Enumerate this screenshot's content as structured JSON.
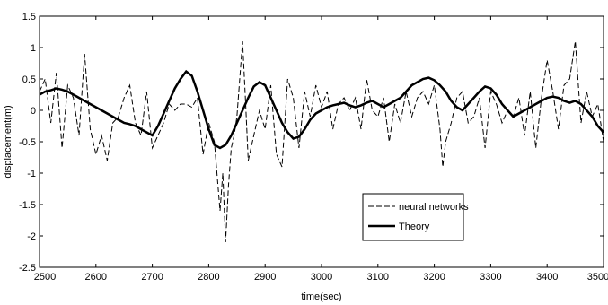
{
  "chart_data": {
    "type": "line",
    "title": "",
    "xlabel": "time(sec)",
    "ylabel": "displacement(m)",
    "xlim": [
      2500,
      3500
    ],
    "ylim": [
      -2.5,
      1.5
    ],
    "xticks": [
      2500,
      2600,
      2700,
      2800,
      2900,
      3000,
      3100,
      3200,
      3300,
      3400,
      3500
    ],
    "yticks": [
      1.5,
      1,
      0.5,
      0,
      -0.5,
      -1,
      -1.5,
      -2,
      -2.5
    ],
    "grid": false,
    "legend_position": "lower-right",
    "series": [
      {
        "name": "neural networks",
        "style": "dashed",
        "color": "#000000",
        "x": [
          2500,
          2510,
          2520,
          2530,
          2540,
          2550,
          2560,
          2570,
          2580,
          2590,
          2600,
          2610,
          2620,
          2630,
          2640,
          2650,
          2660,
          2670,
          2680,
          2690,
          2700,
          2710,
          2720,
          2730,
          2740,
          2750,
          2760,
          2770,
          2780,
          2790,
          2800,
          2810,
          2820,
          2825,
          2830,
          2835,
          2840,
          2845,
          2850,
          2860,
          2865,
          2870,
          2880,
          2890,
          2900,
          2910,
          2920,
          2930,
          2940,
          2950,
          2960,
          2970,
          2980,
          2990,
          3000,
          3010,
          3020,
          3030,
          3040,
          3050,
          3060,
          3070,
          3080,
          3090,
          3100,
          3110,
          3120,
          3130,
          3140,
          3150,
          3160,
          3170,
          3180,
          3190,
          3200,
          3210,
          3215,
          3220,
          3230,
          3240,
          3250,
          3260,
          3270,
          3280,
          3290,
          3300,
          3310,
          3320,
          3330,
          3340,
          3350,
          3360,
          3370,
          3380,
          3390,
          3400,
          3410,
          3420,
          3430,
          3440,
          3450,
          3460,
          3470,
          3480,
          3490,
          3500
        ],
        "y": [
          0.3,
          0.5,
          -0.2,
          0.6,
          -0.6,
          0.4,
          0.2,
          -0.4,
          0.9,
          -0.3,
          -0.7,
          -0.4,
          -0.8,
          -0.2,
          -0.1,
          0.2,
          0.4,
          -0.2,
          -0.4,
          0.3,
          -0.6,
          -0.4,
          -0.2,
          0.1,
          0.0,
          0.1,
          0.1,
          0.05,
          0.2,
          -0.7,
          -0.2,
          -0.5,
          -1.6,
          -1.0,
          -2.1,
          -1.2,
          -0.6,
          -0.4,
          -0.1,
          1.1,
          0.2,
          -0.8,
          -0.4,
          0.0,
          -0.3,
          0.4,
          -0.7,
          -0.9,
          0.5,
          0.2,
          -0.6,
          0.3,
          -0.1,
          0.4,
          0.05,
          0.3,
          -0.3,
          0.1,
          0.2,
          0.0,
          0.2,
          -0.3,
          0.5,
          0.0,
          -0.1,
          0.2,
          -0.5,
          0.1,
          -0.2,
          0.3,
          -0.1,
          0.2,
          0.3,
          0.1,
          0.4,
          -0.3,
          -0.9,
          -0.5,
          -0.2,
          0.2,
          0.3,
          -0.2,
          -0.1,
          0.2,
          -0.6,
          0.3,
          0.1,
          -0.2,
          0.0,
          -0.1,
          0.2,
          -0.4,
          0.3,
          -0.6,
          0.2,
          0.8,
          0.3,
          -0.3,
          0.4,
          0.5,
          1.1,
          -0.2,
          0.3,
          -0.1,
          0.1,
          -0.5
        ]
      },
      {
        "name": "Theory",
        "style": "solid",
        "color": "#000000",
        "x": [
          2500,
          2510,
          2520,
          2530,
          2540,
          2550,
          2560,
          2570,
          2580,
          2590,
          2600,
          2610,
          2620,
          2630,
          2640,
          2650,
          2660,
          2670,
          2680,
          2690,
          2700,
          2710,
          2720,
          2730,
          2740,
          2750,
          2760,
          2770,
          2780,
          2790,
          2800,
          2810,
          2820,
          2830,
          2840,
          2850,
          2860,
          2870,
          2880,
          2890,
          2900,
          2910,
          2920,
          2930,
          2940,
          2950,
          2960,
          2970,
          2980,
          2990,
          3000,
          3010,
          3020,
          3030,
          3040,
          3050,
          3060,
          3070,
          3080,
          3090,
          3100,
          3110,
          3120,
          3130,
          3140,
          3150,
          3160,
          3170,
          3180,
          3190,
          3200,
          3210,
          3220,
          3230,
          3240,
          3250,
          3260,
          3270,
          3280,
          3290,
          3300,
          3310,
          3320,
          3330,
          3340,
          3350,
          3360,
          3370,
          3380,
          3390,
          3400,
          3410,
          3420,
          3430,
          3440,
          3450,
          3460,
          3470,
          3480,
          3490,
          3500
        ],
        "y": [
          0.25,
          0.3,
          0.32,
          0.35,
          0.33,
          0.3,
          0.25,
          0.2,
          0.15,
          0.1,
          0.05,
          0.0,
          -0.05,
          -0.1,
          -0.15,
          -0.2,
          -0.22,
          -0.25,
          -0.3,
          -0.35,
          -0.4,
          -0.25,
          -0.05,
          0.15,
          0.35,
          0.5,
          0.62,
          0.55,
          0.3,
          0.0,
          -0.3,
          -0.55,
          -0.6,
          -0.55,
          -0.4,
          -0.2,
          0.0,
          0.2,
          0.38,
          0.45,
          0.4,
          0.2,
          0.0,
          -0.2,
          -0.35,
          -0.45,
          -0.42,
          -0.3,
          -0.15,
          -0.05,
          0.0,
          0.05,
          0.08,
          0.1,
          0.12,
          0.08,
          0.05,
          0.08,
          0.12,
          0.15,
          0.1,
          0.05,
          0.1,
          0.15,
          0.2,
          0.3,
          0.4,
          0.45,
          0.5,
          0.52,
          0.48,
          0.4,
          0.3,
          0.15,
          0.05,
          0.0,
          0.1,
          0.2,
          0.3,
          0.38,
          0.35,
          0.25,
          0.1,
          0.0,
          -0.1,
          -0.05,
          0.0,
          0.05,
          0.1,
          0.15,
          0.2,
          0.22,
          0.2,
          0.15,
          0.12,
          0.15,
          0.1,
          0.0,
          -0.1,
          -0.25,
          -0.35
        ]
      }
    ]
  }
}
